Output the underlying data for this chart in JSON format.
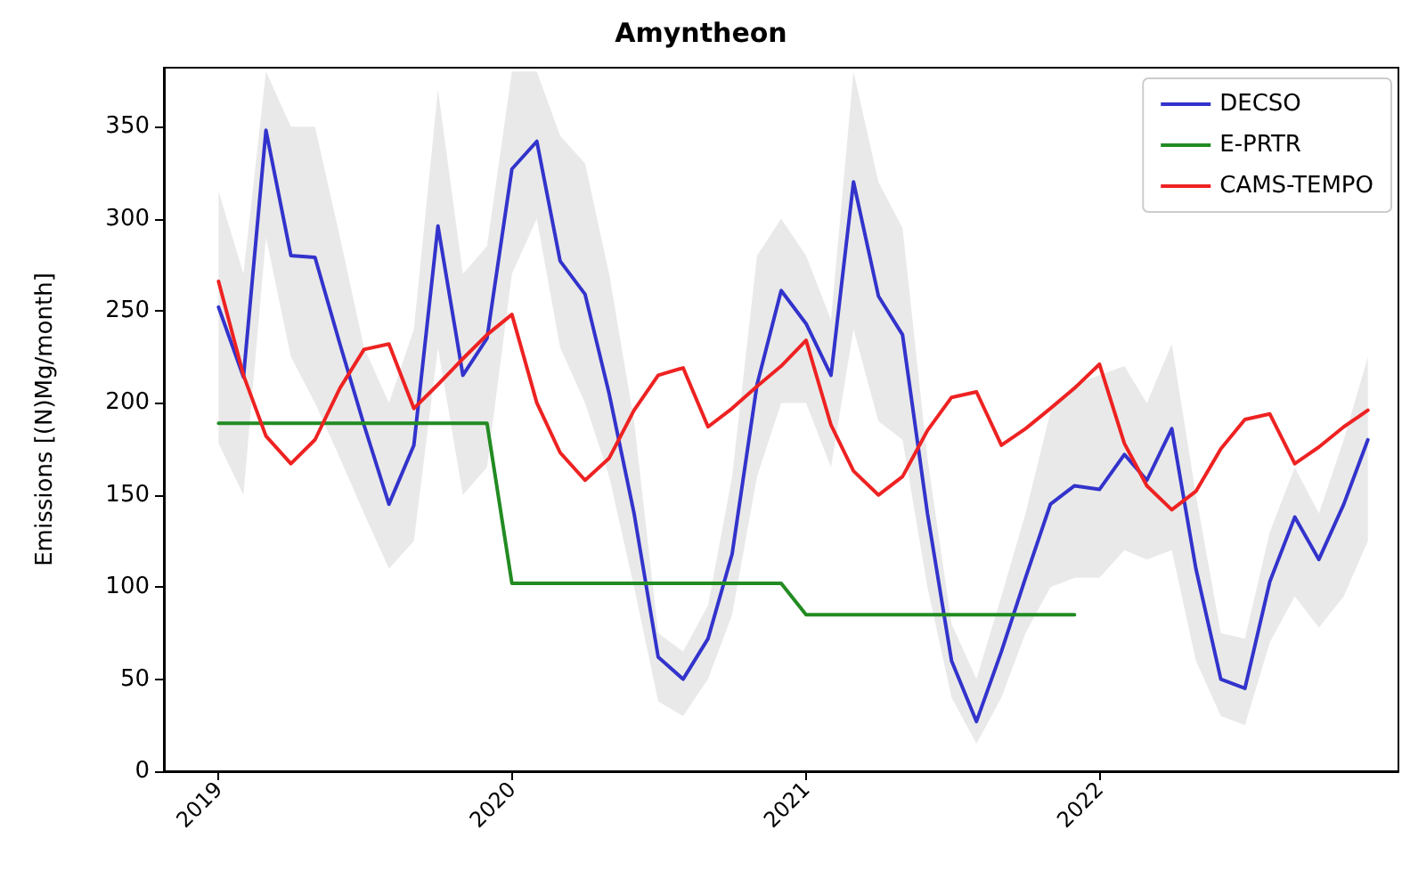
{
  "chart_data": {
    "type": "line",
    "title": "Amyntheon",
    "ylabel": "Emissions [(N)Mg/month]",
    "xlim": [
      "2018-10-25",
      "2023-01-08"
    ],
    "xticks": [
      {
        "value": "2019-01-01",
        "label": "2019"
      },
      {
        "value": "2020-01-01",
        "label": "2020"
      },
      {
        "value": "2021-01-01",
        "label": "2021"
      },
      {
        "value": "2022-01-01",
        "label": "2022"
      }
    ],
    "ylim": [
      0,
      382
    ],
    "yticks": [
      0,
      50,
      100,
      150,
      200,
      250,
      300,
      350
    ],
    "grid": false,
    "legend": "top right",
    "marker": "none",
    "line_style": "solid",
    "series": [
      {
        "name": "DECSO",
        "color": "#3333cc",
        "x": [
          "2019-01",
          "2019-02",
          "2019-03",
          "2019-04",
          "2019-05",
          "2019-06",
          "2019-07",
          "2019-08",
          "2019-09",
          "2019-10",
          "2019-11",
          "2019-12",
          "2020-01",
          "2020-02",
          "2020-03",
          "2020-04",
          "2020-05",
          "2020-06",
          "2020-07",
          "2020-08",
          "2020-09",
          "2020-10",
          "2020-11",
          "2020-12",
          "2021-01",
          "2021-02",
          "2021-03",
          "2021-04",
          "2021-05",
          "2021-06",
          "2021-07",
          "2021-08",
          "2021-09",
          "2021-10",
          "2021-11",
          "2021-12",
          "2022-01",
          "2022-02",
          "2022-03",
          "2022-04",
          "2022-05",
          "2022-06",
          "2022-07",
          "2022-08",
          "2022-09",
          "2022-10",
          "2022-11",
          "2022-12"
        ],
        "values": [
          252,
          214,
          348,
          280,
          279,
          232,
          188,
          145,
          177,
          296,
          215,
          235,
          327,
          342,
          277,
          259,
          205,
          140,
          62,
          50,
          72,
          118,
          210,
          261,
          243,
          215,
          320,
          258,
          237,
          140,
          60,
          27,
          65,
          105,
          145,
          155,
          153,
          172,
          158,
          186,
          110,
          50,
          45,
          103,
          138,
          115,
          145,
          180
        ],
        "lower": [
          178,
          150,
          290,
          225,
          200,
          170,
          140,
          110,
          125,
          230,
          150,
          165,
          270,
          300,
          230,
          200,
          160,
          100,
          38,
          30,
          50,
          85,
          160,
          200,
          200,
          165,
          240,
          190,
          180,
          100,
          40,
          15,
          40,
          75,
          100,
          105,
          105,
          120,
          115,
          120,
          60,
          30,
          25,
          70,
          95,
          78,
          95,
          125
        ],
        "upper": [
          315,
          270,
          380,
          350,
          350,
          290,
          230,
          200,
          240,
          370,
          270,
          285,
          380,
          380,
          345,
          330,
          270,
          190,
          75,
          65,
          90,
          160,
          280,
          300,
          280,
          245,
          380,
          320,
          295,
          170,
          80,
          50,
          95,
          140,
          195,
          210,
          215,
          220,
          200,
          232,
          150,
          75,
          72,
          130,
          165,
          140,
          180,
          225
        ]
      },
      {
        "name": "E-PRTR",
        "color": "#228b22",
        "x": [
          "2019-01",
          "2019-02",
          "2019-03",
          "2019-04",
          "2019-05",
          "2019-06",
          "2019-07",
          "2019-08",
          "2019-09",
          "2019-10",
          "2019-11",
          "2019-12",
          "2020-01",
          "2020-02",
          "2020-03",
          "2020-04",
          "2020-05",
          "2020-06",
          "2020-07",
          "2020-08",
          "2020-09",
          "2020-10",
          "2020-11",
          "2020-12",
          "2021-01",
          "2021-02",
          "2021-03",
          "2021-04",
          "2021-05",
          "2021-06",
          "2021-07",
          "2021-08",
          "2021-09",
          "2021-10",
          "2021-11",
          "2021-12"
        ],
        "values": [
          189,
          189,
          189,
          189,
          189,
          189,
          189,
          189,
          189,
          189,
          189,
          189,
          102,
          102,
          102,
          102,
          102,
          102,
          102,
          102,
          102,
          102,
          102,
          102,
          85,
          85,
          85,
          85,
          85,
          85,
          85,
          85,
          85,
          85,
          85,
          85
        ]
      },
      {
        "name": "CAMS-TEMPO",
        "color": "#ee2222",
        "x": [
          "2019-01",
          "2019-02",
          "2019-03",
          "2019-04",
          "2019-05",
          "2019-06",
          "2019-07",
          "2019-08",
          "2019-09",
          "2019-10",
          "2019-11",
          "2019-12",
          "2020-01",
          "2020-02",
          "2020-03",
          "2020-04",
          "2020-05",
          "2020-06",
          "2020-07",
          "2020-08",
          "2020-09",
          "2020-10",
          "2020-11",
          "2020-12",
          "2021-01",
          "2021-02",
          "2021-03",
          "2021-04",
          "2021-05",
          "2021-06",
          "2021-07",
          "2021-08",
          "2021-09",
          "2021-10",
          "2021-11",
          "2021-12",
          "2022-01",
          "2022-02",
          "2022-03",
          "2022-04",
          "2022-05",
          "2022-06",
          "2022-07",
          "2022-08",
          "2022-09",
          "2022-10",
          "2022-11",
          "2022-12"
        ],
        "values": [
          266,
          215,
          182,
          167,
          180,
          208,
          229,
          232,
          197,
          210,
          224,
          237,
          248,
          200,
          173,
          158,
          170,
          196,
          215,
          219,
          187,
          197,
          209,
          220,
          234,
          188,
          163,
          150,
          160,
          185,
          203,
          206,
          177,
          186,
          197,
          208,
          221,
          178,
          155,
          142,
          152,
          175,
          191,
          194,
          167,
          176,
          187,
          196
        ]
      }
    ]
  }
}
